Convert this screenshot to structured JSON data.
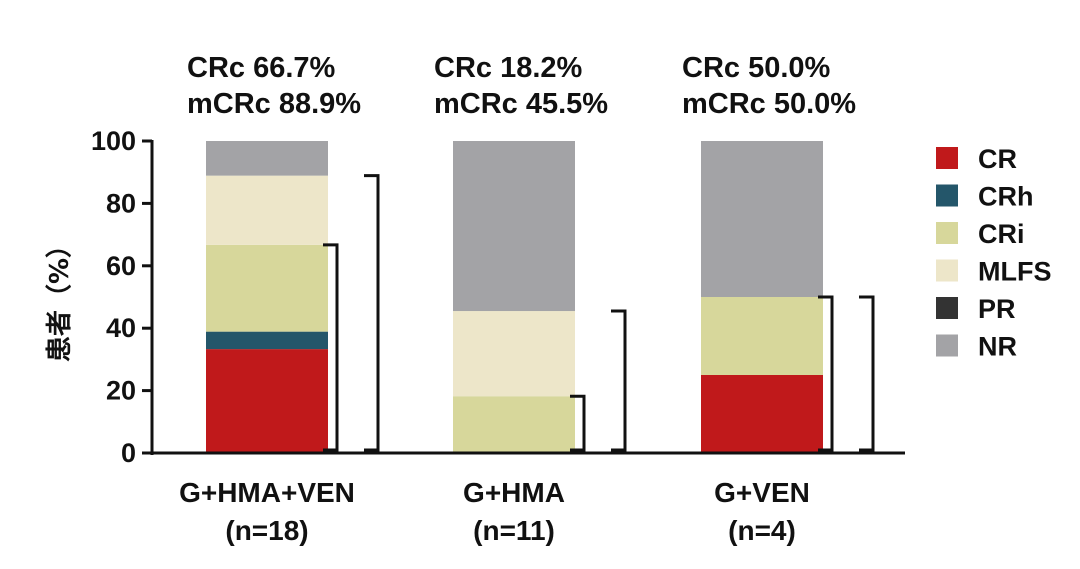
{
  "chart_data": {
    "type": "bar",
    "stacked": true,
    "ylabel": "患者（%）",
    "ylim": [
      0,
      100
    ],
    "yticks": [
      0,
      20,
      40,
      60,
      80,
      100
    ],
    "categories": [
      {
        "name": "G+HMA+VEN",
        "n": "(n=18)",
        "crc_label": "CRc 66.7%",
        "mcrc_label": "mCRc 88.9%",
        "brackets": [
          {
            "from": 0,
            "to": 66.7
          },
          {
            "from": 0,
            "to": 88.9
          }
        ]
      },
      {
        "name": "G+HMA",
        "n": "(n=11)",
        "crc_label": "CRc 18.2%",
        "mcrc_label": "mCRc 45.5%",
        "brackets": [
          {
            "from": 0,
            "to": 18.2
          },
          {
            "from": 0,
            "to": 45.5
          }
        ]
      },
      {
        "name": "G+VEN",
        "n": "(n=4)",
        "crc_label": "CRc 50.0%",
        "mcrc_label": "mCRc 50.0%",
        "brackets": [
          {
            "from": 0,
            "to": 50.0
          },
          {
            "from": 0,
            "to": 50.0
          }
        ]
      }
    ],
    "series": [
      {
        "name": "CR",
        "color": "#c0191b",
        "values": [
          33.3,
          0,
          25.0
        ]
      },
      {
        "name": "CRh",
        "color": "#24566a",
        "values": [
          5.6,
          0,
          0
        ]
      },
      {
        "name": "CRi",
        "color": "#d7d79b",
        "values": [
          27.8,
          18.2,
          25.0
        ]
      },
      {
        "name": "MLFS",
        "color": "#ede6c9",
        "values": [
          22.2,
          27.3,
          0
        ]
      },
      {
        "name": "PR",
        "color": "#333333",
        "values": [
          0,
          0,
          0
        ]
      },
      {
        "name": "NR",
        "color": "#a3a3a6",
        "values": [
          11.1,
          54.5,
          50.0
        ]
      }
    ],
    "legend": "right"
  }
}
